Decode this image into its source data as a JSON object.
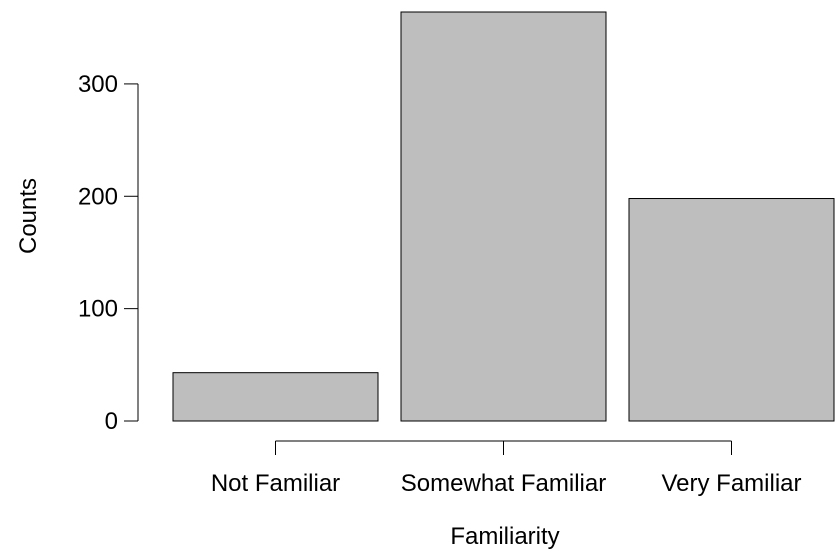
{
  "chart_data": {
    "type": "bar",
    "title": "",
    "xlabel": "Familiarity",
    "ylabel": "Counts",
    "categories": [
      "Not Familiar",
      "Somewhat Familiar",
      "Very Familiar"
    ],
    "values": [
      43,
      364,
      198
    ],
    "ylim": [
      0,
      364
    ],
    "yticks": [
      0,
      100,
      200,
      300
    ],
    "grid": false,
    "legend": "none",
    "colors": {
      "bar_fill": "#bebebe",
      "bar_stroke": "#000000",
      "axis": "#000000",
      "x_axis": "#000000"
    }
  }
}
